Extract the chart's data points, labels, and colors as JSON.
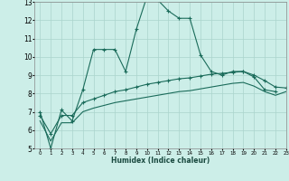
{
  "title": "",
  "xlabel": "Humidex (Indice chaleur)",
  "background_color": "#cceee8",
  "grid_color": "#aad4cc",
  "line_color": "#1a6b5a",
  "xlim": [
    -0.5,
    23
  ],
  "ylim": [
    5,
    13
  ],
  "yticks": [
    5,
    6,
    7,
    8,
    9,
    10,
    11,
    12,
    13
  ],
  "xticks": [
    0,
    1,
    2,
    3,
    4,
    5,
    6,
    7,
    8,
    9,
    10,
    11,
    12,
    13,
    14,
    15,
    16,
    17,
    18,
    19,
    20,
    21,
    22,
    23
  ],
  "series1_x": [
    0,
    1,
    2,
    3,
    4,
    5,
    6,
    7,
    8,
    9,
    10,
    11,
    12,
    13,
    14,
    15,
    16,
    17,
    18,
    19,
    20,
    21,
    22
  ],
  "series1_y": [
    7.0,
    5.0,
    7.1,
    6.5,
    8.2,
    10.4,
    10.4,
    10.4,
    9.2,
    11.5,
    13.3,
    13.1,
    12.5,
    12.1,
    12.1,
    10.1,
    9.2,
    9.0,
    9.2,
    9.2,
    8.9,
    8.2,
    8.1
  ],
  "series2_x": [
    0,
    1,
    2,
    3,
    4,
    5,
    6,
    7,
    8,
    9,
    10,
    11,
    12,
    13,
    14,
    15,
    16,
    17,
    18,
    19,
    20,
    21,
    22,
    23
  ],
  "series2_y": [
    6.8,
    5.8,
    6.8,
    6.8,
    7.5,
    7.7,
    7.9,
    8.1,
    8.2,
    8.35,
    8.5,
    8.6,
    8.7,
    8.8,
    8.85,
    8.95,
    9.05,
    9.1,
    9.15,
    9.2,
    9.0,
    8.7,
    8.35,
    8.3
  ],
  "series3_x": [
    0,
    1,
    2,
    3,
    4,
    5,
    6,
    7,
    8,
    9,
    10,
    11,
    12,
    13,
    14,
    15,
    16,
    17,
    18,
    19,
    20,
    21,
    22,
    23
  ],
  "series3_y": [
    6.5,
    5.4,
    6.4,
    6.4,
    7.0,
    7.2,
    7.35,
    7.5,
    7.6,
    7.7,
    7.8,
    7.9,
    8.0,
    8.1,
    8.15,
    8.25,
    8.35,
    8.45,
    8.55,
    8.6,
    8.4,
    8.1,
    7.9,
    8.1
  ]
}
